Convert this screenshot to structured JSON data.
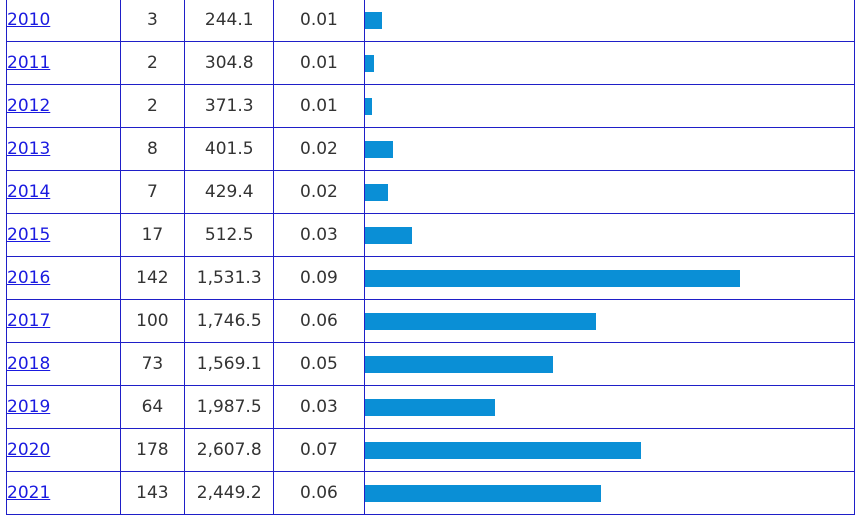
{
  "table": {
    "bar_color": "#0a8fd6",
    "link_color": "#1a1ae0",
    "border_color": "#1f1fc8",
    "bar_scale_max": 142,
    "rows": [
      {
        "year": "2010",
        "count": "3",
        "size": "244.1",
        "rate": "0.01",
        "bar_value": 6.6
      },
      {
        "year": "2011",
        "count": "2",
        "size": "304.8",
        "rate": "0.01",
        "bar_value": 3.4
      },
      {
        "year": "2012",
        "count": "2",
        "size": "371.3",
        "rate": "0.01",
        "bar_value": 2.7
      },
      {
        "year": "2013",
        "count": "8",
        "size": "401.5",
        "rate": "0.02",
        "bar_value": 10.6
      },
      {
        "year": "2014",
        "count": "7",
        "size": "429.4",
        "rate": "0.02",
        "bar_value": 8.7
      },
      {
        "year": "2015",
        "count": "17",
        "size": "512.5",
        "rate": "0.03",
        "bar_value": 17.7
      },
      {
        "year": "2016",
        "count": "142",
        "size": "1,531.3",
        "rate": "0.09",
        "bar_value": 142
      },
      {
        "year": "2017",
        "count": "100",
        "size": "1,746.5",
        "rate": "0.06",
        "bar_value": 87.6
      },
      {
        "year": "2018",
        "count": "73",
        "size": "1,569.1",
        "rate": "0.05",
        "bar_value": 71.3
      },
      {
        "year": "2019",
        "count": "64",
        "size": "1,987.5",
        "rate": "0.03",
        "bar_value": 49.2
      },
      {
        "year": "2020",
        "count": "178",
        "size": "2,607.8",
        "rate": "0.07",
        "bar_value": 104.6
      },
      {
        "year": "2021",
        "count": "143",
        "size": "2,449.2",
        "rate": "0.06",
        "bar_value": 89.4
      }
    ]
  }
}
